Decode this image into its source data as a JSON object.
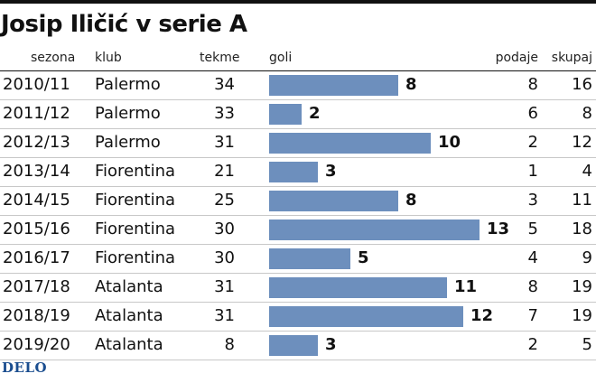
{
  "title": "Josip Iličić v serie A",
  "logo": "DELO",
  "columns": {
    "season": "sezona",
    "club": "klub",
    "apps": "tekme",
    "goals": "goli",
    "assists": "podaje",
    "total": "skupaj"
  },
  "colors": {
    "bar": "#6d8fbd",
    "text": "#111111"
  },
  "rows": [
    {
      "season": "2010/11",
      "club": "Palermo",
      "apps": "34",
      "goals": "8",
      "assists": "8",
      "total": "16"
    },
    {
      "season": "2011/12",
      "club": "Palermo",
      "apps": "33",
      "goals": "2",
      "assists": "6",
      "total": "8"
    },
    {
      "season": "2012/13",
      "club": "Palermo",
      "apps": "31",
      "goals": "10",
      "assists": "2",
      "total": "12"
    },
    {
      "season": "2013/14",
      "club": "Fiorentina",
      "apps": "21",
      "goals": "3",
      "assists": "1",
      "total": "4"
    },
    {
      "season": "2014/15",
      "club": "Fiorentina",
      "apps": "25",
      "goals": "8",
      "assists": "3",
      "total": "11"
    },
    {
      "season": "2015/16",
      "club": "Fiorentina",
      "apps": "30",
      "goals": "13",
      "assists": "5",
      "total": "18"
    },
    {
      "season": "2016/17",
      "club": "Fiorentina",
      "apps": "30",
      "goals": "5",
      "assists": "4",
      "total": "9"
    },
    {
      "season": "2017/18",
      "club": "Atalanta",
      "apps": "31",
      "goals": "11",
      "assists": "8",
      "total": "19"
    },
    {
      "season": "2018/19",
      "club": "Atalanta",
      "apps": "31",
      "goals": "12",
      "assists": "7",
      "total": "19"
    },
    {
      "season": "2019/20",
      "club": "Atalanta",
      "apps": "8",
      "goals": "3",
      "assists": "2",
      "total": "5"
    }
  ],
  "chart_data": {
    "type": "bar",
    "title": "Josip Iličić v serie A",
    "categories": [
      "2010/11",
      "2011/12",
      "2012/13",
      "2013/14",
      "2014/15",
      "2015/16",
      "2016/17",
      "2017/18",
      "2018/19",
      "2019/20"
    ],
    "series": [
      {
        "name": "goli",
        "values": [
          8,
          2,
          10,
          3,
          8,
          13,
          5,
          11,
          12,
          3
        ]
      }
    ],
    "xlabel": "goli",
    "ylabel": "sezona",
    "xlim": [
      0,
      13
    ],
    "grid": false,
    "legend": "none"
  }
}
